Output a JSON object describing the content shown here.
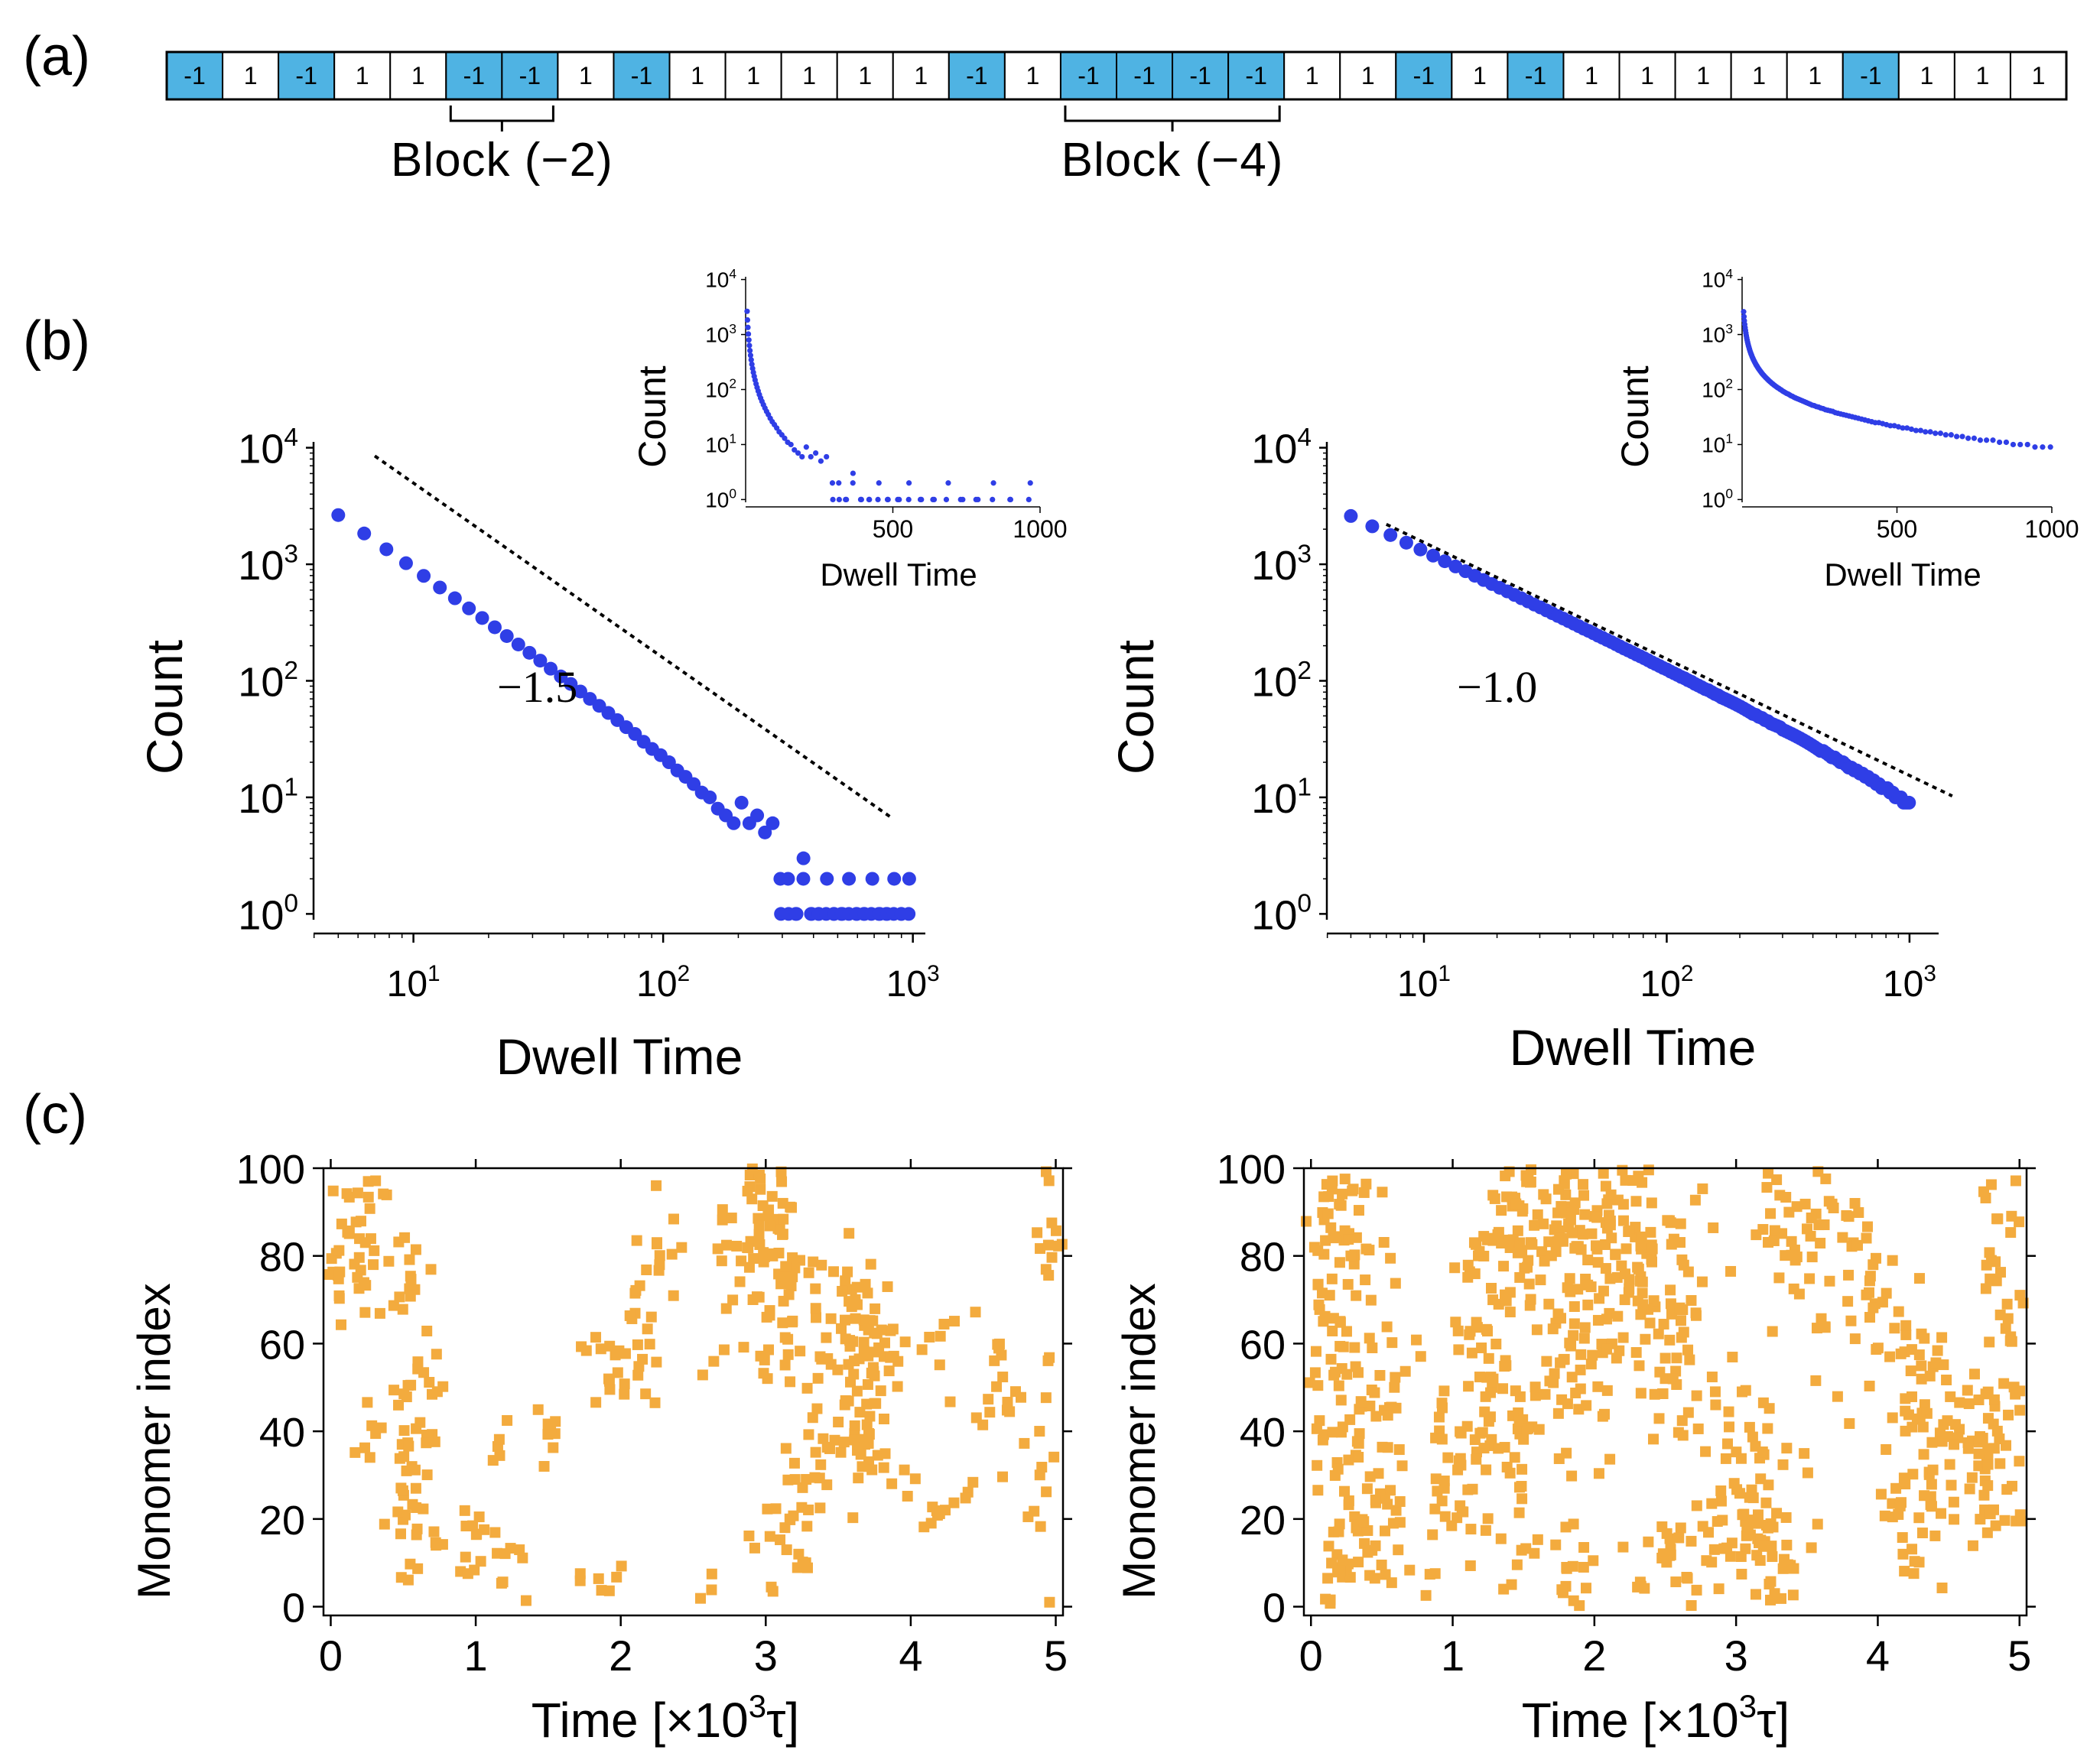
{
  "panel_labels": {
    "a": "(a)",
    "b": "(b)",
    "c": "(c)"
  },
  "colors": {
    "spin_minus": "#4fb3e3",
    "spin_plus_text": "#e0508a",
    "dots": "#2f3ee6",
    "orange": "#f3ab3e",
    "fit_line": "#000000"
  },
  "sequence": {
    "spins": [
      "-1",
      "1",
      "-1",
      "1",
      "1",
      "-1",
      "-1",
      "1",
      "-1",
      "1",
      "1",
      "1",
      "1",
      "1",
      "-1",
      "1",
      "-1",
      "-1",
      "-1",
      "-1",
      "1",
      "1",
      "-1",
      "1",
      "-1",
      "1",
      "1",
      "1",
      "1",
      "1",
      "-1",
      "1",
      "1",
      "1"
    ],
    "blocks": [
      {
        "label": "Block (−2)",
        "start": 5,
        "end": 6
      },
      {
        "label": "Block (−4)",
        "start": 16,
        "end": 19
      }
    ]
  },
  "chart_data": [
    {
      "id": "dwell-left",
      "type": "scatter",
      "xscale": "log",
      "yscale": "log",
      "xlabel": "Dwell Time",
      "ylabel": "Count",
      "xlim_log10": [
        0.6,
        3.05
      ],
      "ylim_log10": [
        -0.05,
        4.05
      ],
      "xticks": [
        {
          "exp": "1",
          "v": 1
        },
        {
          "exp": "2",
          "v": 2
        },
        {
          "exp": "3",
          "v": 3
        }
      ],
      "yticks": [
        {
          "exp": "0",
          "v": 0
        },
        {
          "exp": "1",
          "v": 1
        },
        {
          "exp": "2",
          "v": 2
        },
        {
          "exp": "3",
          "v": 3
        },
        {
          "exp": "4",
          "v": 4
        }
      ],
      "slope_label": "−1.5",
      "slope": -1.5,
      "fit_x_range": [
        7,
        820
      ],
      "fit_anchor": {
        "x": 7,
        "y": 8500
      },
      "tail": {
        "power": 1.5,
        "x_min": 5,
        "x_max": 970,
        "step_frac": 0.07,
        "scale": 30000,
        "decay": 320,
        "noise": 0.35
      },
      "inset": {
        "xlabel": "Dwell Time",
        "ylabel": "Count",
        "xlim": [
          0,
          1000
        ],
        "ylim_log10": [
          -0.05,
          4.05
        ],
        "xticks": [
          {
            "label": "500",
            "v": 500
          },
          {
            "label": "1000",
            "v": 1000
          }
        ],
        "yticks": [
          {
            "exp": "0",
            "v": 0
          },
          {
            "exp": "1",
            "v": 1
          },
          {
            "exp": "2",
            "v": 2
          },
          {
            "exp": "3",
            "v": 3
          },
          {
            "exp": "4",
            "v": 4
          }
        ],
        "x_max": 970
      }
    },
    {
      "id": "dwell-right",
      "type": "scatter",
      "xscale": "log",
      "yscale": "log",
      "xlabel": "Dwell Time",
      "ylabel": "Count",
      "xlim_log10": [
        0.6,
        3.12
      ],
      "ylim_log10": [
        -0.05,
        4.05
      ],
      "xticks": [
        {
          "exp": "1",
          "v": 1
        },
        {
          "exp": "2",
          "v": 2
        },
        {
          "exp": "3",
          "v": 3
        }
      ],
      "yticks": [
        {
          "exp": "0",
          "v": 0
        },
        {
          "exp": "1",
          "v": 1
        },
        {
          "exp": "2",
          "v": 2
        },
        {
          "exp": "3",
          "v": 3
        },
        {
          "exp": "4",
          "v": 4
        }
      ],
      "slope_label": "−1.0",
      "slope": -1.0,
      "fit_x_range": [
        7,
        1500
      ],
      "fit_anchor": {
        "x": 7,
        "y": 2200
      },
      "tail": {
        "power": 1.0,
        "x_min": 5,
        "x_max": 1000,
        "step_frac": 0.025,
        "scale": 13000,
        "decay": 2500,
        "noise": 0.45
      },
      "inset": {
        "xlabel": "Dwell Time",
        "ylabel": "Count",
        "xlim": [
          0,
          1000
        ],
        "ylim_log10": [
          -0.05,
          4.05
        ],
        "xticks": [
          {
            "label": "500",
            "v": 500
          },
          {
            "label": "1000",
            "v": 1000
          }
        ],
        "yticks": [
          {
            "exp": "0",
            "v": 0
          },
          {
            "exp": "1",
            "v": 1
          },
          {
            "exp": "2",
            "v": 2
          },
          {
            "exp": "3",
            "v": 3
          },
          {
            "exp": "4",
            "v": 4
          }
        ],
        "x_max": 1000
      }
    },
    {
      "id": "kymo-left",
      "type": "scatter",
      "xlabel_main": "Time [×10",
      "xlabel_sup": "3",
      "xlabel_end": "τ]",
      "ylabel": "Monomer index",
      "xlim": [
        -0.05,
        5.05
      ],
      "ylim": [
        -2,
        100
      ],
      "xticks": [
        {
          "label": "0",
          "v": 0
        },
        {
          "label": "1",
          "v": 1
        },
        {
          "label": "2",
          "v": 2
        },
        {
          "label": "3",
          "v": 3
        },
        {
          "label": "4",
          "v": 4
        },
        {
          "label": "5",
          "v": 5
        }
      ],
      "yticks": [
        {
          "label": "0",
          "v": 0
        },
        {
          "label": "20",
          "v": 20
        },
        {
          "label": "40",
          "v": 40
        },
        {
          "label": "60",
          "v": 60
        },
        {
          "label": "80",
          "v": 80
        },
        {
          "label": "100",
          "v": 100
        }
      ],
      "density": 0.45,
      "seed": 11,
      "clusters": [
        {
          "t": 0.15,
          "m": 85,
          "st": 0.1,
          "sm": 12,
          "n": 90
        },
        {
          "t": 0.5,
          "m": 78,
          "st": 0.08,
          "sm": 10,
          "n": 40
        },
        {
          "t": 0.7,
          "m": 50,
          "st": 0.06,
          "sm": 8,
          "n": 25
        },
        {
          "t": 0.55,
          "m": 28,
          "st": 0.08,
          "sm": 14,
          "n": 90
        },
        {
          "t": 0.28,
          "m": 42,
          "st": 0.05,
          "sm": 8,
          "n": 15
        },
        {
          "t": 1.05,
          "m": 10,
          "st": 0.12,
          "sm": 8,
          "n": 55
        },
        {
          "t": 1.15,
          "m": 35,
          "st": 0.05,
          "sm": 5,
          "n": 12
        },
        {
          "t": 1.52,
          "m": 42,
          "st": 0.05,
          "sm": 6,
          "n": 18
        },
        {
          "t": 1.9,
          "m": 55,
          "st": 0.12,
          "sm": 5,
          "n": 30
        },
        {
          "t": 2.15,
          "m": 65,
          "st": 0.08,
          "sm": 10,
          "n": 40
        },
        {
          "t": 2.3,
          "m": 83,
          "st": 0.07,
          "sm": 8,
          "n": 25
        },
        {
          "t": 1.85,
          "m": 5,
          "st": 0.1,
          "sm": 4,
          "n": 20
        },
        {
          "t": 2.6,
          "m": 3,
          "st": 0.04,
          "sm": 3,
          "n": 8
        },
        {
          "t": 2.7,
          "m": 70,
          "st": 0.05,
          "sm": 10,
          "n": 15
        },
        {
          "t": 3.0,
          "m": 88,
          "st": 0.15,
          "sm": 10,
          "n": 140
        },
        {
          "t": 3.3,
          "m": 65,
          "st": 0.22,
          "sm": 12,
          "n": 130
        },
        {
          "t": 3.7,
          "m": 60,
          "st": 0.15,
          "sm": 10,
          "n": 110
        },
        {
          "t": 3.65,
          "m": 38,
          "st": 0.1,
          "sm": 8,
          "n": 70
        },
        {
          "t": 3.2,
          "m": 22,
          "st": 0.12,
          "sm": 8,
          "n": 50
        },
        {
          "t": 3.35,
          "m": 40,
          "st": 0.05,
          "sm": 8,
          "n": 20
        },
        {
          "t": 3.0,
          "m": 10,
          "st": 0.05,
          "sm": 4,
          "n": 8
        },
        {
          "t": 4.15,
          "m": 25,
          "st": 0.1,
          "sm": 5,
          "n": 30
        },
        {
          "t": 4.4,
          "m": 62,
          "st": 0.15,
          "sm": 5,
          "n": 20
        },
        {
          "t": 4.6,
          "m": 48,
          "st": 0.15,
          "sm": 8,
          "n": 40
        },
        {
          "t": 4.95,
          "m": 85,
          "st": 0.04,
          "sm": 10,
          "n": 30
        },
        {
          "t": 4.9,
          "m": 35,
          "st": 0.05,
          "sm": 15,
          "n": 25
        }
      ]
    },
    {
      "id": "kymo-right",
      "type": "scatter",
      "xlabel_main": "Time [×10",
      "xlabel_sup": "3",
      "xlabel_end": "τ]",
      "ylabel": "Monomer index",
      "xlim": [
        -0.05,
        5.05
      ],
      "ylim": [
        -2,
        100
      ],
      "xticks": [
        {
          "label": "0",
          "v": 0
        },
        {
          "label": "1",
          "v": 1
        },
        {
          "label": "2",
          "v": 2
        },
        {
          "label": "3",
          "v": 3
        },
        {
          "label": "4",
          "v": 4
        },
        {
          "label": "5",
          "v": 5
        }
      ],
      "yticks": [
        {
          "label": "0",
          "v": 0
        },
        {
          "label": "20",
          "v": 20
        },
        {
          "label": "40",
          "v": 40
        },
        {
          "label": "60",
          "v": 60
        },
        {
          "label": "80",
          "v": 80
        },
        {
          "label": "100",
          "v": 100
        }
      ],
      "density": 0.45,
      "seed": 29,
      "clusters": [
        {
          "t": 0.2,
          "m": 82,
          "st": 0.15,
          "sm": 14,
          "n": 150
        },
        {
          "t": 0.25,
          "m": 45,
          "st": 0.2,
          "sm": 14,
          "n": 150
        },
        {
          "t": 0.15,
          "m": 10,
          "st": 0.15,
          "sm": 8,
          "n": 70
        },
        {
          "t": 0.5,
          "m": 20,
          "st": 0.12,
          "sm": 10,
          "n": 60
        },
        {
          "t": 0.95,
          "m": 25,
          "st": 0.1,
          "sm": 12,
          "n": 55
        },
        {
          "t": 1.2,
          "m": 50,
          "st": 0.12,
          "sm": 18,
          "n": 140
        },
        {
          "t": 1.5,
          "m": 85,
          "st": 0.18,
          "sm": 10,
          "n": 170
        },
        {
          "t": 1.5,
          "m": 30,
          "st": 0.1,
          "sm": 14,
          "n": 60
        },
        {
          "t": 1.9,
          "m": 65,
          "st": 0.2,
          "sm": 14,
          "n": 170
        },
        {
          "t": 2.0,
          "m": 90,
          "st": 0.15,
          "sm": 8,
          "n": 90
        },
        {
          "t": 2.4,
          "m": 80,
          "st": 0.2,
          "sm": 12,
          "n": 150
        },
        {
          "t": 2.6,
          "m": 55,
          "st": 0.15,
          "sm": 10,
          "n": 80
        },
        {
          "t": 2.45,
          "m": 10,
          "st": 0.2,
          "sm": 8,
          "n": 70
        },
        {
          "t": 3.1,
          "m": 35,
          "st": 0.15,
          "sm": 15,
          "n": 80
        },
        {
          "t": 3.3,
          "m": 10,
          "st": 0.15,
          "sm": 8,
          "n": 90
        },
        {
          "t": 3.5,
          "m": 88,
          "st": 0.18,
          "sm": 9,
          "n": 120
        },
        {
          "t": 3.9,
          "m": 68,
          "st": 0.15,
          "sm": 10,
          "n": 70
        },
        {
          "t": 4.3,
          "m": 45,
          "st": 0.15,
          "sm": 12,
          "n": 110
        },
        {
          "t": 4.7,
          "m": 32,
          "st": 0.2,
          "sm": 10,
          "n": 140
        },
        {
          "t": 4.9,
          "m": 55,
          "st": 0.1,
          "sm": 15,
          "n": 60
        },
        {
          "t": 4.3,
          "m": 15,
          "st": 0.15,
          "sm": 8,
          "n": 40
        },
        {
          "t": 4.85,
          "m": 88,
          "st": 0.08,
          "sm": 8,
          "n": 30
        },
        {
          "t": 1.8,
          "m": 12,
          "st": 0.1,
          "sm": 8,
          "n": 40
        },
        {
          "t": 2.9,
          "m": 25,
          "st": 0.1,
          "sm": 10,
          "n": 40
        }
      ]
    }
  ]
}
